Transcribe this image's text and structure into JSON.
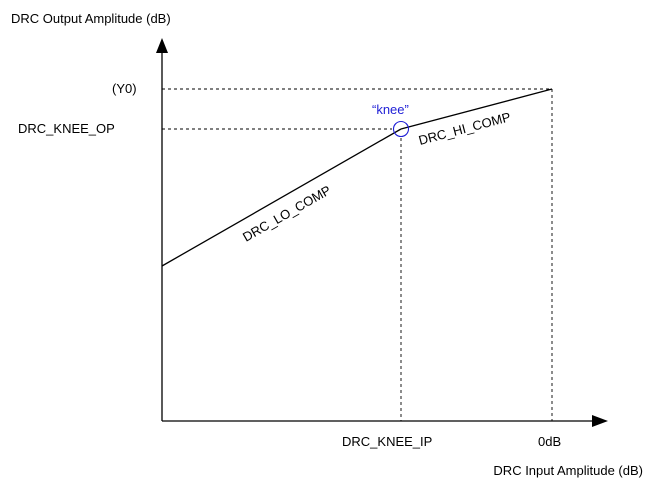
{
  "y_axis_title": "DRC Output Amplitude (dB)",
  "x_axis_title": "DRC Input Amplitude (dB)",
  "y_labels": {
    "y0": "(Y0)",
    "knee_op": "DRC_KNEE_OP"
  },
  "x_labels": {
    "knee_ip": "DRC_KNEE_IP",
    "zero_db": "0dB"
  },
  "segments": {
    "lo": "DRC_LO_COMP",
    "hi": "DRC_HI_COMP"
  },
  "knee_label": "“knee”",
  "colors": {
    "line": "#000000",
    "knee": "#1f1fd6"
  }
}
